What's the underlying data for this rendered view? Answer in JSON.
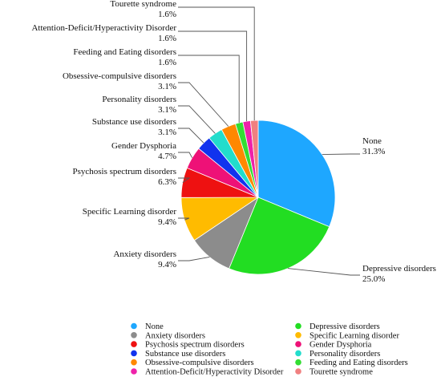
{
  "chart_data": {
    "type": "pie",
    "title": "",
    "start_angle_deg": 0,
    "direction": "clockwise",
    "legend_position": "bottom",
    "slices": [
      {
        "label": "None",
        "value": 31.3,
        "value_text": "31.3%",
        "color": "#1ea7ff"
      },
      {
        "label": "Depressive disorders",
        "value": 25.0,
        "value_text": "25.0%",
        "color": "#22dd22"
      },
      {
        "label": "Anxiety disorders",
        "value": 9.4,
        "value_text": "9.4%",
        "color": "#8c8c8c"
      },
      {
        "label": "Specific Learning disorder",
        "value": 9.4,
        "value_text": "9.4%",
        "color": "#ffbb00"
      },
      {
        "label": "Psychosis spectrum disorders",
        "value": 6.3,
        "value_text": "6.3%",
        "color": "#ee1111"
      },
      {
        "label": "Gender Dysphoria",
        "value": 4.7,
        "value_text": "4.7%",
        "color": "#ee1177"
      },
      {
        "label": "Substance use disorders",
        "value": 3.1,
        "value_text": "3.1%",
        "color": "#1133ee"
      },
      {
        "label": "Personality disorders",
        "value": 3.1,
        "value_text": "3.1%",
        "color": "#22ddcc"
      },
      {
        "label": "Obsessive-compulsive disorders",
        "value": 3.1,
        "value_text": "3.1%",
        "color": "#ff8800"
      },
      {
        "label": "Feeding and Eating disorders",
        "value": 1.6,
        "value_text": "1.6%",
        "color": "#33dd33"
      },
      {
        "label": "Attention-Deficit/Hyperactivity Disorder",
        "value": 1.6,
        "value_text": "1.6%",
        "color": "#ee22aa"
      },
      {
        "label": "Tourette syndrome",
        "value": 1.6,
        "value_text": "1.6%",
        "color": "#f08080"
      }
    ]
  }
}
